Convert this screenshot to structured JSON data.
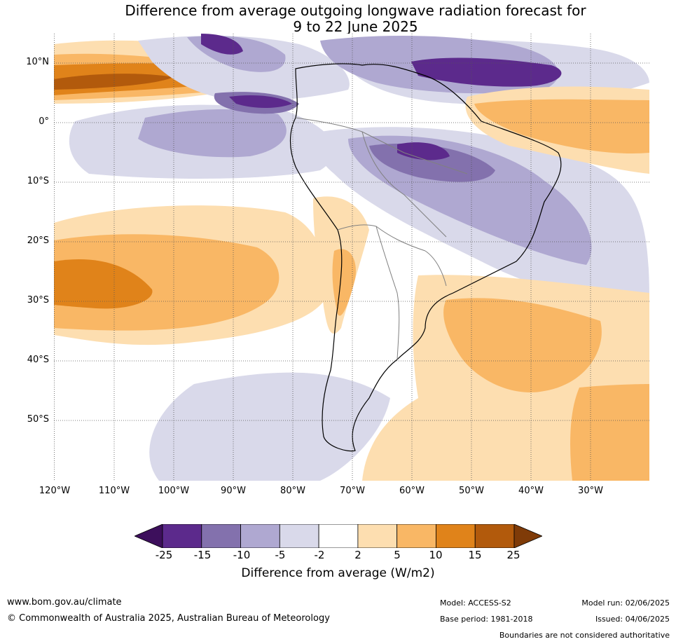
{
  "title_line1": "Difference from average outgoing longwave radiation forecast for",
  "title_line2": "9 to 22 June 2025",
  "lat_labels": [
    "10°N",
    "0°",
    "10°S",
    "20°S",
    "30°S",
    "40°S",
    "50°S"
  ],
  "lon_labels": [
    "120°W",
    "110°W",
    "100°W",
    "90°W",
    "80°W",
    "70°W",
    "60°W",
    "50°W",
    "40°W",
    "30°W"
  ],
  "colorbar": {
    "ticks": [
      "-25",
      "-15",
      "-10",
      "-5",
      "-2",
      "2",
      "5",
      "10",
      "15",
      "25"
    ],
    "label": "Difference from average (W/m2)",
    "colors": [
      "#3d0f5c",
      "#5c2a8c",
      "#8371ad",
      "#afa8d1",
      "#d9d9ea",
      "#ffffff",
      "#fddeb0",
      "#f9b765",
      "#e0831a",
      "#b25a0c",
      "#7f3b08"
    ]
  },
  "footer": {
    "url": "www.bom.gov.au/climate",
    "copyright": "© Commonwealth of Australia 2025, Australian Bureau of Meteorology",
    "model": "Model: ACCESS-S2",
    "base_period": "Base period: 1981-2018",
    "model_run": "Model run: 02/06/2025",
    "issued": "Issued: 04/06/2025",
    "disclaimer": "Boundaries are not considered authoritative"
  }
}
